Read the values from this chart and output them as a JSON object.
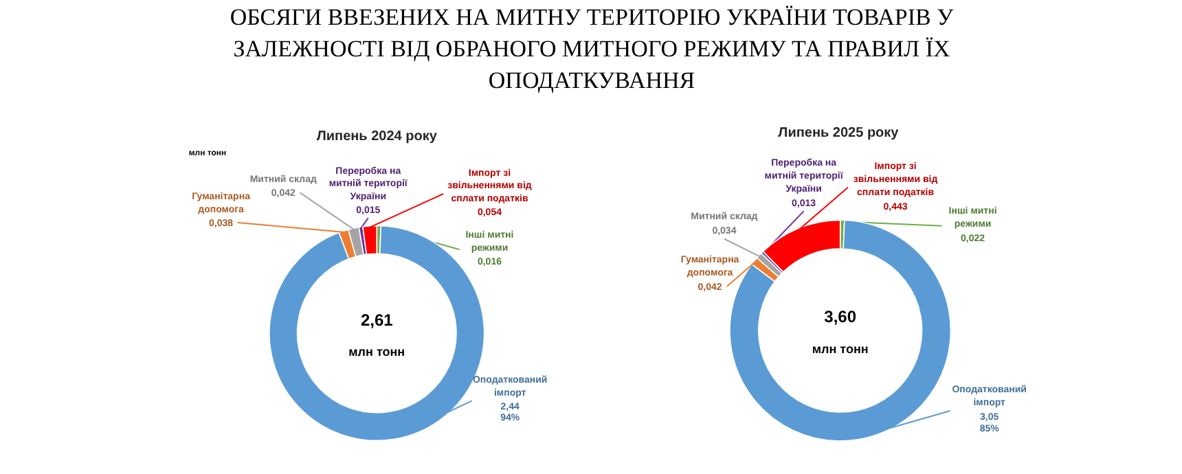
{
  "chart_data": [
    {
      "type": "donut",
      "title": "Липень 2024 року",
      "annotations": [
        "ОБСЯГИ ВВЕЗЕНИХ НА МИТНУ ТЕРИТОРІЮ УКРАЇНИ ТОВАРІВ У ЗАЛЕЖНОСТІ ВІД ОБРАНОГО МИТНОГО РЕЖИМУ ТА ПРАВИЛ ЇХ ОПОДАТКУВАННЯ",
        "млн тонн",
        "2,61",
        "млн тонн"
      ],
      "categories": [
        "Інші митні режими",
        "Оподаткований імпорт",
        "Гуманітарна допомога",
        "Митний склад",
        "Переробка на митній території України",
        "Імпорт зі звільненнями від сплати податків"
      ],
      "values": [
        0.016,
        2.44,
        0.038,
        0.042,
        0.015,
        0.054
      ],
      "value_labels": [
        "0,016",
        "2,44\n94%",
        "0,038",
        "0,042",
        "0,015",
        "0,054"
      ],
      "colors": [
        "#70ad47",
        "#5b9bd5",
        "#ed7d31",
        "#a5a5a5",
        "#7030a0",
        "#ff0000"
      ]
    },
    {
      "type": "donut",
      "title": "Липень 2025  року",
      "annotations": [
        "3,60",
        "млн тонн"
      ],
      "categories": [
        "Інші митні режими",
        "Оподаткований імпорт",
        "Гуманітарна допомога",
        "Митний склад",
        "Переробка на митній території України",
        "Імпорт зі звільненнями від сплати податків"
      ],
      "values": [
        0.022,
        3.05,
        0.042,
        0.034,
        0.013,
        0.443
      ],
      "value_labels": [
        "0,022",
        "3,05\n85%",
        "0,042",
        "0,034",
        "0,013",
        "0,443"
      ],
      "colors": [
        "#70ad47",
        "#5b9bd5",
        "#ed7d31",
        "#a5a5a5",
        "#7030a0",
        "#ff0000"
      ]
    }
  ]
}
